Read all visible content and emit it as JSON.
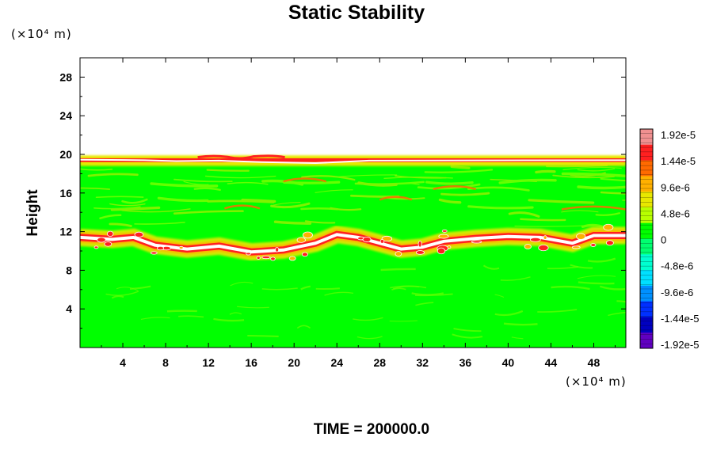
{
  "chart_data": {
    "type": "heatmap",
    "title": "Static Stability",
    "xlabel": "",
    "ylabel": "Height",
    "x_unit": "(×10⁴ m)",
    "y_unit": "(×10⁴ m)",
    "xlim": [
      0,
      51
    ],
    "ylim": [
      0,
      30
    ],
    "x_ticks": [
      4,
      8,
      12,
      16,
      20,
      24,
      28,
      32,
      36,
      40,
      44,
      48
    ],
    "y_ticks": [
      4,
      8,
      12,
      16,
      20,
      24,
      28
    ],
    "grid": false,
    "domain_top_height": 19.5,
    "dominant_value": 0,
    "high_stability_layers": [
      {
        "description_level": "top boundary",
        "height": 19.5
      },
      {
        "description_level": "tropopause band",
        "height_range": [
          9.8,
          12.2
        ]
      }
    ],
    "colorbar": {
      "labels": [
        "1.92e-5",
        "1.44e-5",
        "9.6e-6",
        "4.8e-6",
        "0",
        "-4.8e-6",
        "-9.6e-6",
        "-1.44e-5",
        "-1.92e-5"
      ],
      "min": -1.92e-05,
      "max": 1.92e-05,
      "colors": [
        "#f09090",
        "#ff2020",
        "#ff6a00",
        "#ffb000",
        "#e8e800",
        "#b8ff00",
        "#00ff00",
        "#00ff70",
        "#00ffd0",
        "#00e0ff",
        "#0090ff",
        "#0030ff",
        "#0000c0",
        "#6000c0"
      ]
    }
  },
  "footer": {
    "time_label": "TIME = 200000.0"
  }
}
